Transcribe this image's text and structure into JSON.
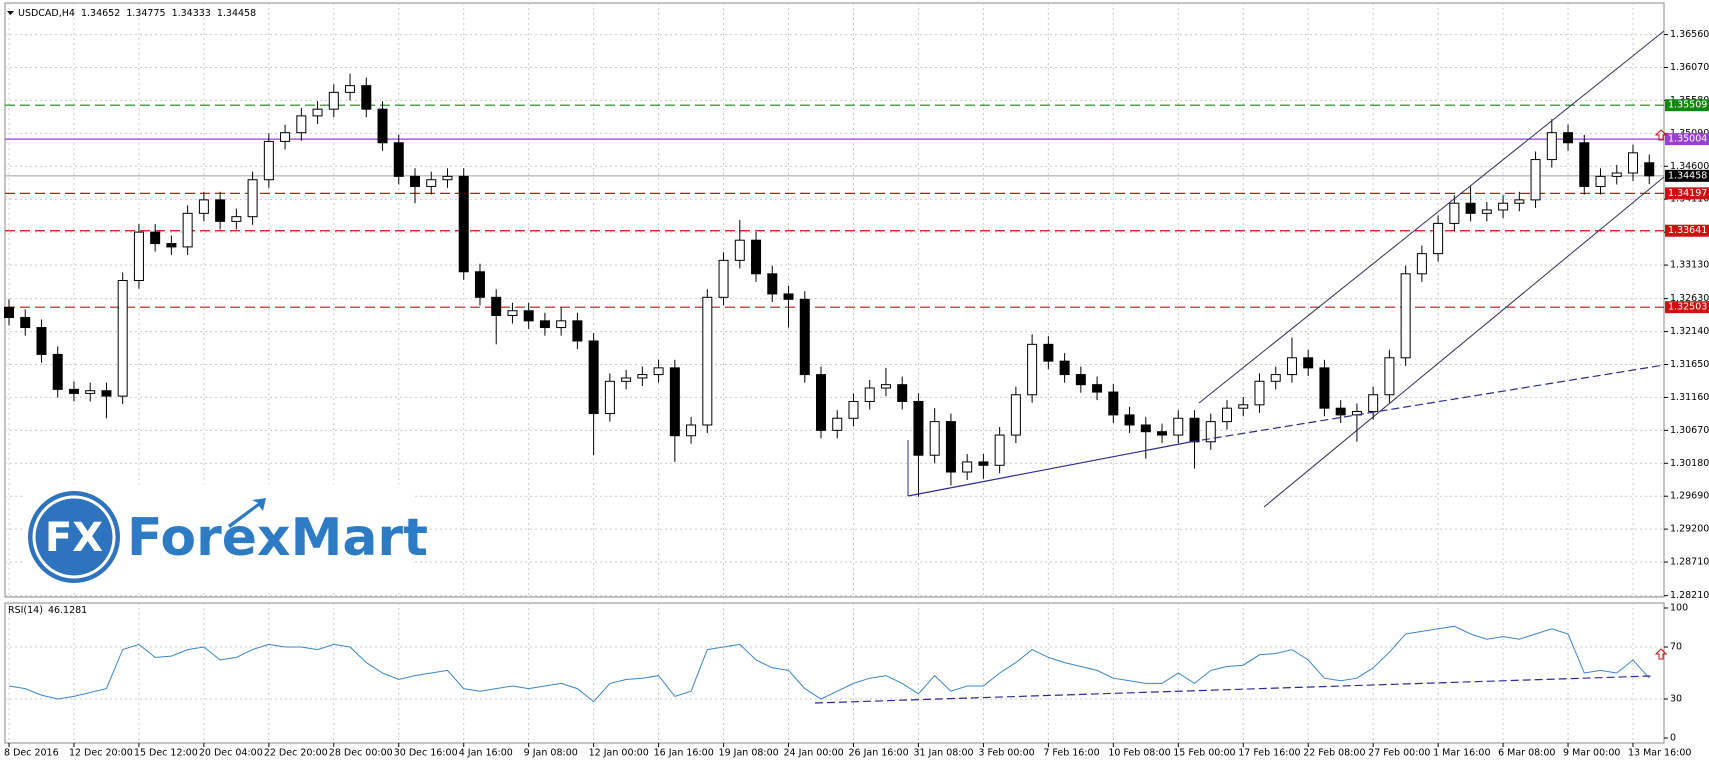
{
  "chart_data": [
    {
      "type": "candlestick",
      "title": "USDCAD,H4",
      "grid": true,
      "colors": {
        "up": "#ffffff",
        "down": "#000000"
      },
      "categories": [
        "8 Dec 2016",
        null,
        null,
        null,
        "12 Dec 20:00",
        null,
        null,
        null,
        "15 Dec 12:00",
        null,
        null,
        null,
        "20 Dec 04:00",
        null,
        null,
        null,
        "22 Dec 20:00",
        null,
        null,
        null,
        "28 Dec 00:00",
        null,
        null,
        null,
        "30 Dec 16:00",
        null,
        null,
        null,
        "4 Jan 16:00",
        null,
        null,
        null,
        "9 Jan 08:00",
        null,
        null,
        null,
        "12 Jan 00:00",
        null,
        null,
        null,
        "16 Jan 16:00",
        null,
        null,
        null,
        "19 Jan 08:00",
        null,
        null,
        null,
        "24 Jan 00:00",
        null,
        null,
        null,
        "26 Jan 16:00",
        null,
        null,
        null,
        "31 Jan 08:00",
        null,
        null,
        null,
        "3 Feb 00:00",
        null,
        null,
        null,
        "7 Feb 16:00",
        null,
        null,
        null,
        "10 Feb 08:00",
        null,
        null,
        null,
        "15 Feb 00:00",
        null,
        null,
        null,
        "17 Feb 16:00",
        null,
        null,
        null,
        "22 Feb 08:00",
        null,
        null,
        null,
        "27 Feb 00:00",
        null,
        null,
        null,
        "1 Mar 16:00",
        null,
        null,
        null,
        "6 Mar 08:00",
        null,
        null,
        null,
        "9 Mar 00:00",
        null,
        null,
        null,
        "13 Mar 16:00",
        null
      ],
      "series": [
        {
          "open": [
            1.325,
            1.3235,
            1.322,
            1.318,
            1.3128,
            1.3122,
            1.3126,
            1.3118,
            1.329,
            1.3362,
            1.3345,
            1.334,
            1.339,
            1.341,
            1.3378,
            1.3385,
            1.344,
            1.3497,
            1.351,
            1.3535,
            1.3545,
            1.357,
            1.358,
            1.3545,
            1.3495,
            1.3445,
            1.343,
            1.344,
            1.3445,
            1.3303,
            1.3265,
            1.3238,
            1.3245,
            1.323,
            1.322,
            1.323,
            1.32,
            1.3092,
            1.314,
            1.3145,
            1.315,
            1.316,
            1.3059,
            1.3075,
            1.3265,
            1.332,
            1.335,
            1.33,
            1.327,
            1.3262,
            1.315,
            1.3067,
            1.3085,
            1.311,
            1.313,
            1.3135,
            1.311,
            1.303,
            1.308,
            1.3005,
            1.302,
            1.3015,
            1.306,
            1.312,
            1.3195,
            1.317,
            1.315,
            1.3135,
            1.3124,
            1.309,
            1.3075,
            1.3065,
            1.306,
            1.3085,
            1.305,
            1.308,
            1.31,
            1.3105,
            1.314,
            1.315,
            1.3175,
            1.316,
            1.31,
            1.309,
            1.3095,
            1.312,
            1.3175,
            1.33,
            1.333,
            1.3375,
            1.3405,
            1.339,
            1.3395,
            1.3405,
            1.341,
            1.347,
            1.351,
            1.3495,
            1.343,
            1.3445,
            1.345,
            1.34652
          ],
          "high": [
            1.3262,
            1.3247,
            1.3232,
            1.3192,
            1.314,
            1.3138,
            1.3138,
            1.3302,
            1.3374,
            1.3374,
            1.3357,
            1.3402,
            1.3422,
            1.3422,
            1.3397,
            1.3452,
            1.3509,
            1.3522,
            1.3547,
            1.3557,
            1.3582,
            1.3598,
            1.3592,
            1.3557,
            1.3507,
            1.3457,
            1.3452,
            1.3457,
            1.3457,
            1.3315,
            1.3277,
            1.3257,
            1.3257,
            1.3242,
            1.325,
            1.3242,
            1.3212,
            1.3152,
            1.3157,
            1.3162,
            1.3172,
            1.3172,
            1.3087,
            1.3277,
            1.3332,
            1.338,
            1.3362,
            1.3312,
            1.3282,
            1.3274,
            1.3162,
            1.3097,
            1.3122,
            1.3142,
            1.316,
            1.3147,
            1.3122,
            1.31,
            1.3092,
            1.3032,
            1.3032,
            1.3072,
            1.3132,
            1.321,
            1.3207,
            1.3182,
            1.3162,
            1.3147,
            1.3136,
            1.3102,
            1.3087,
            1.3077,
            1.3097,
            1.3097,
            1.3092,
            1.3112,
            1.3117,
            1.3152,
            1.3162,
            1.3205,
            1.3187,
            1.3172,
            1.3112,
            1.3107,
            1.3132,
            1.3187,
            1.3312,
            1.3342,
            1.3387,
            1.3417,
            1.343,
            1.3407,
            1.3417,
            1.3422,
            1.3482,
            1.353,
            1.3522,
            1.3507,
            1.3457,
            1.3462,
            1.3492,
            1.34775
          ],
          "low": [
            1.3223,
            1.3208,
            1.3168,
            1.3116,
            1.311,
            1.311,
            1.3085,
            1.3106,
            1.3278,
            1.3333,
            1.3328,
            1.3328,
            1.3378,
            1.3366,
            1.3366,
            1.3373,
            1.3428,
            1.3485,
            1.3498,
            1.3523,
            1.3533,
            1.3558,
            1.3533,
            1.3483,
            1.3433,
            1.3405,
            1.3418,
            1.3428,
            1.3291,
            1.3253,
            1.3195,
            1.3226,
            1.3218,
            1.3208,
            1.3208,
            1.3188,
            1.303,
            1.308,
            1.3128,
            1.3133,
            1.3138,
            1.302,
            1.3047,
            1.3063,
            1.3253,
            1.3308,
            1.3288,
            1.3258,
            1.322,
            1.3138,
            1.3055,
            1.3055,
            1.3073,
            1.3098,
            1.3118,
            1.3098,
            1.2968,
            1.3018,
            1.2985,
            1.2993,
            1.2995,
            1.3003,
            1.3048,
            1.3108,
            1.3158,
            1.3138,
            1.3123,
            1.3112,
            1.3078,
            1.3063,
            1.3025,
            1.3048,
            1.3048,
            1.301,
            1.3038,
            1.3068,
            1.3088,
            1.3093,
            1.3128,
            1.3138,
            1.3148,
            1.3088,
            1.3078,
            1.305,
            1.3083,
            1.3108,
            1.3163,
            1.3288,
            1.3318,
            1.3363,
            1.3378,
            1.3378,
            1.3383,
            1.3393,
            1.3398,
            1.3458,
            1.3483,
            1.3418,
            1.3418,
            1.3433,
            1.3438,
            1.34333
          ],
          "close": [
            1.3235,
            1.322,
            1.318,
            1.3128,
            1.3122,
            1.3126,
            1.3118,
            1.329,
            1.3362,
            1.3345,
            1.334,
            1.339,
            1.341,
            1.3378,
            1.3385,
            1.344,
            1.3497,
            1.351,
            1.3535,
            1.3545,
            1.357,
            1.358,
            1.3545,
            1.3495,
            1.3445,
            1.343,
            1.344,
            1.3445,
            1.3303,
            1.3265,
            1.3238,
            1.3245,
            1.323,
            1.322,
            1.323,
            1.32,
            1.3092,
            1.314,
            1.3145,
            1.315,
            1.316,
            1.3059,
            1.3075,
            1.3265,
            1.332,
            1.335,
            1.33,
            1.327,
            1.3262,
            1.315,
            1.3067,
            1.3085,
            1.311,
            1.313,
            1.3135,
            1.311,
            1.303,
            1.308,
            1.3005,
            1.302,
            1.3015,
            1.306,
            1.312,
            1.3195,
            1.317,
            1.315,
            1.3135,
            1.3124,
            1.309,
            1.3075,
            1.3065,
            1.306,
            1.3085,
            1.305,
            1.308,
            1.31,
            1.3105,
            1.314,
            1.315,
            1.3175,
            1.316,
            1.31,
            1.309,
            1.3095,
            1.312,
            1.3175,
            1.33,
            1.333,
            1.3375,
            1.3405,
            1.339,
            1.3395,
            1.3405,
            1.341,
            1.347,
            1.351,
            1.3495,
            1.343,
            1.3445,
            1.345,
            1.348,
            1.34458
          ]
        }
      ],
      "ylim": [
        1.2819,
        1.3703
      ],
      "yticks": [
        {
          "value": 1.3656,
          "label": "1.36560"
        },
        {
          "value": 1.3607,
          "label": "1.36070"
        },
        {
          "value": 1.3558,
          "label": "1.35580"
        },
        {
          "value": 1.3509,
          "label": "1.35090"
        },
        {
          "value": 1.346,
          "label": "1.34600"
        },
        {
          "value": 1.3411,
          "label": "1.34110"
        },
        {
          "value": 1.3362,
          "label": "1.33620"
        },
        {
          "value": 1.3313,
          "label": "1.33130"
        },
        {
          "value": 1.3263,
          "label": "1.32630"
        },
        {
          "value": 1.3214,
          "label": "1.32140"
        },
        {
          "value": 1.3165,
          "label": "1.31650"
        },
        {
          "value": 1.3116,
          "label": "1.31160"
        },
        {
          "value": 1.3067,
          "label": "1.30670"
        },
        {
          "value": 1.3018,
          "label": "1.30180"
        },
        {
          "value": 1.2969,
          "label": "1.29690"
        },
        {
          "value": 1.292,
          "label": "1.29200"
        },
        {
          "value": 1.2871,
          "label": "1.28710"
        },
        {
          "value": 1.2821,
          "label": "1.28210"
        }
      ],
      "levels": [
        {
          "value": 1.35509,
          "color": "#118811",
          "dashed": true
        },
        {
          "value": 1.35004,
          "color": "#9b3fd0",
          "dashed": false
        },
        {
          "value": 1.34197,
          "color": "#d01010",
          "dashed": true
        },
        {
          "value": 1.33641,
          "color": "#d01010",
          "dashed": true
        },
        {
          "value": 1.32503,
          "color": "#d01010",
          "dashed": true
        }
      ]
    },
    {
      "type": "line",
      "series": [
        {
          "name": "RSI(14)",
          "color": "#3a86c8",
          "values": [
            40,
            38,
            33,
            30,
            32,
            35,
            38,
            68,
            72,
            62,
            63,
            68,
            70,
            60,
            62,
            68,
            72,
            70,
            70,
            68,
            72,
            70,
            58,
            50,
            45,
            48,
            50,
            52,
            38,
            36,
            38,
            40,
            38,
            40,
            42,
            38,
            28,
            42,
            45,
            46,
            48,
            32,
            36,
            68,
            70,
            72,
            60,
            54,
            52,
            38,
            30,
            36,
            42,
            46,
            48,
            42,
            34,
            48,
            36,
            40,
            40,
            50,
            58,
            68,
            62,
            58,
            55,
            52,
            46,
            44,
            42,
            42,
            50,
            42,
            52,
            55,
            56,
            64,
            65,
            68,
            60,
            46,
            44,
            46,
            54,
            66,
            80,
            82,
            84,
            86,
            80,
            76,
            78,
            76,
            80,
            84,
            80,
            50,
            52,
            50,
            60,
            46.1281
          ]
        }
      ],
      "ylim": [
        0,
        100
      ],
      "yticks": [
        0,
        30,
        70,
        100
      ]
    }
  ],
  "watermark": {
    "logo": "FX",
    "text": "ForexMart"
  }
}
